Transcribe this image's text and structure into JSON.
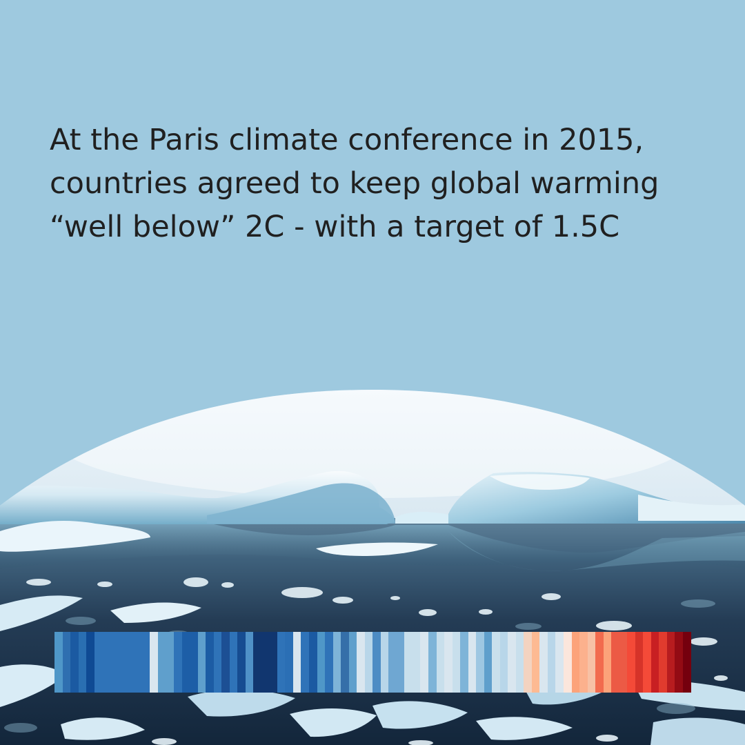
{
  "headline": {
    "line1": "At the Paris climate conference in 2015,",
    "line2": "countries agreed to keep global warming",
    "line3": "“well below” 2C - with a target of 1.5C"
  },
  "colors": {
    "background": "#9ec9df",
    "text": "#202020",
    "stripes": [
      "#4f97c8",
      "#2f6fb0",
      "#1b5aa2",
      "#2a6fb2",
      "#0f4a94",
      "#2f73b8",
      "#2f73b8",
      "#2f73b8",
      "#2f73b8",
      "#2f73b8",
      "#2f73b8",
      "#2f73b8",
      "#d9e6ef",
      "#5f9fcc",
      "#5f9fcc",
      "#2f73b8",
      "#1d5ea7",
      "#1d5ea7",
      "#5f9fcc",
      "#1c5ca4",
      "#2f73b8",
      "#1c4f94",
      "#2f73b8",
      "#164c91",
      "#4f91c7",
      "#11366f",
      "#11366f",
      "#11366f",
      "#2f73b8",
      "#2b6fb5",
      "#d9e6ef",
      "#2f73b8",
      "#1b5aa2",
      "#4f97c8",
      "#2f73b8",
      "#7eb4d8",
      "#356fa9",
      "#5f9fcc",
      "#d9e6ef",
      "#b8d6e9",
      "#4d8cc4",
      "#b8d6e9",
      "#6fa7d2",
      "#6fa7d2",
      "#c8dfec",
      "#c8dfec",
      "#d9e6ef",
      "#7eb4d8",
      "#c8dfec",
      "#d9e6ef",
      "#c8dfec",
      "#7eb4d8",
      "#d9e6ef",
      "#9ec7e2",
      "#5f9fcc",
      "#c8dfec",
      "#b8d6e9",
      "#d9e6ef",
      "#c8dfec",
      "#f3d3c0",
      "#fdba93",
      "#d9e6ef",
      "#b8d6e9",
      "#d9e6ef",
      "#fbe6dc",
      "#fca37a",
      "#fcb18d",
      "#f7c1a5",
      "#f26b4e",
      "#fca37a",
      "#ec5a45",
      "#ec5a45",
      "#f44a38",
      "#d63329",
      "#f44a38",
      "#c81f22",
      "#e13b2e",
      "#b71c1f",
      "#930b14",
      "#75000e"
    ]
  }
}
